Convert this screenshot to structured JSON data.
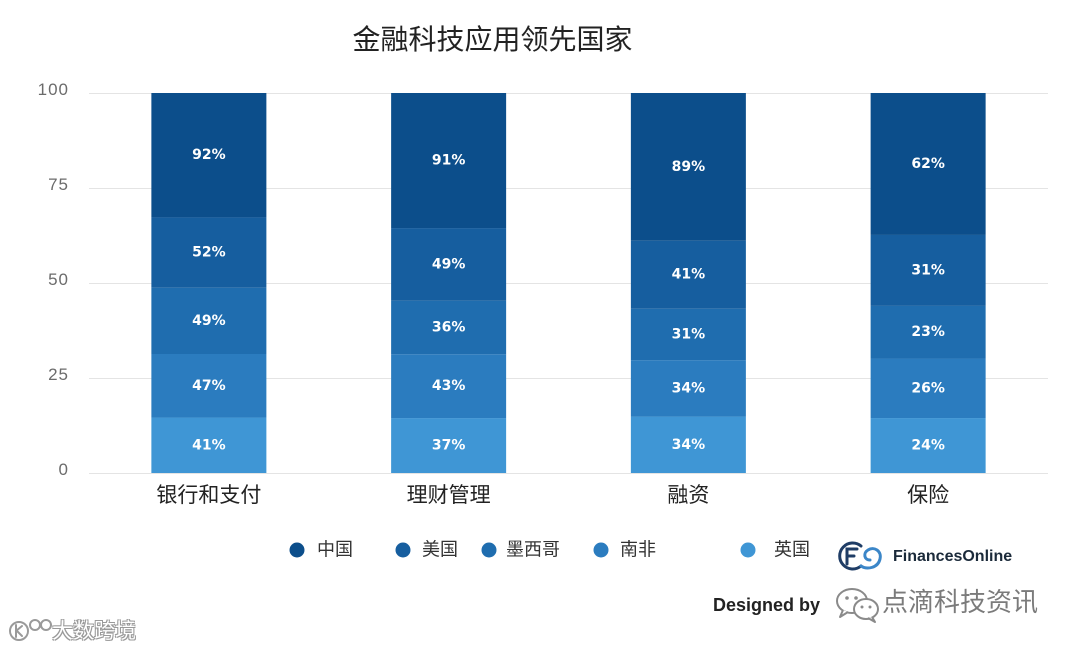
{
  "chart_data": {
    "type": "bar",
    "stacked": "percent",
    "title": "金融科技应用领先国家",
    "categories": [
      "银行和支付",
      "理财管理",
      "融资",
      "保险"
    ],
    "series": [
      {
        "name": "中国",
        "values": [
          92,
          91,
          89,
          62
        ],
        "color": "#0c4e8b"
      },
      {
        "name": "美国",
        "values": [
          52,
          49,
          41,
          31
        ],
        "color": "#165e9f"
      },
      {
        "name": "墨西哥",
        "values": [
          49,
          36,
          31,
          23
        ],
        "color": "#1f6daf"
      },
      {
        "name": "南非",
        "values": [
          47,
          43,
          34,
          26
        ],
        "color": "#2b7cbf"
      },
      {
        "name": "英国",
        "values": [
          41,
          37,
          34,
          24
        ],
        "color": "#3f96d5"
      }
    ],
    "value_unit": "%",
    "ylim": [
      0,
      100
    ],
    "yticks": [
      0,
      25,
      50,
      75,
      100
    ],
    "grid": true,
    "legend": "bottom"
  },
  "credits": {
    "brand_icon": "financesonline-logo-icon",
    "brand": "FinancesOnline",
    "designed_by": "Designed by"
  },
  "watermarks": {
    "wechat": {
      "icon": "wechat-icon",
      "text": "点滴科技资讯"
    },
    "corner": {
      "icon": "dashu-logo-icon",
      "text": "大数跨境"
    }
  },
  "colors": {
    "gridline": "#e4e4e4",
    "axis_text": "#6b6b6b",
    "data_label": "#ffffff",
    "category_text": "#222222",
    "legend_text": "#333333"
  }
}
